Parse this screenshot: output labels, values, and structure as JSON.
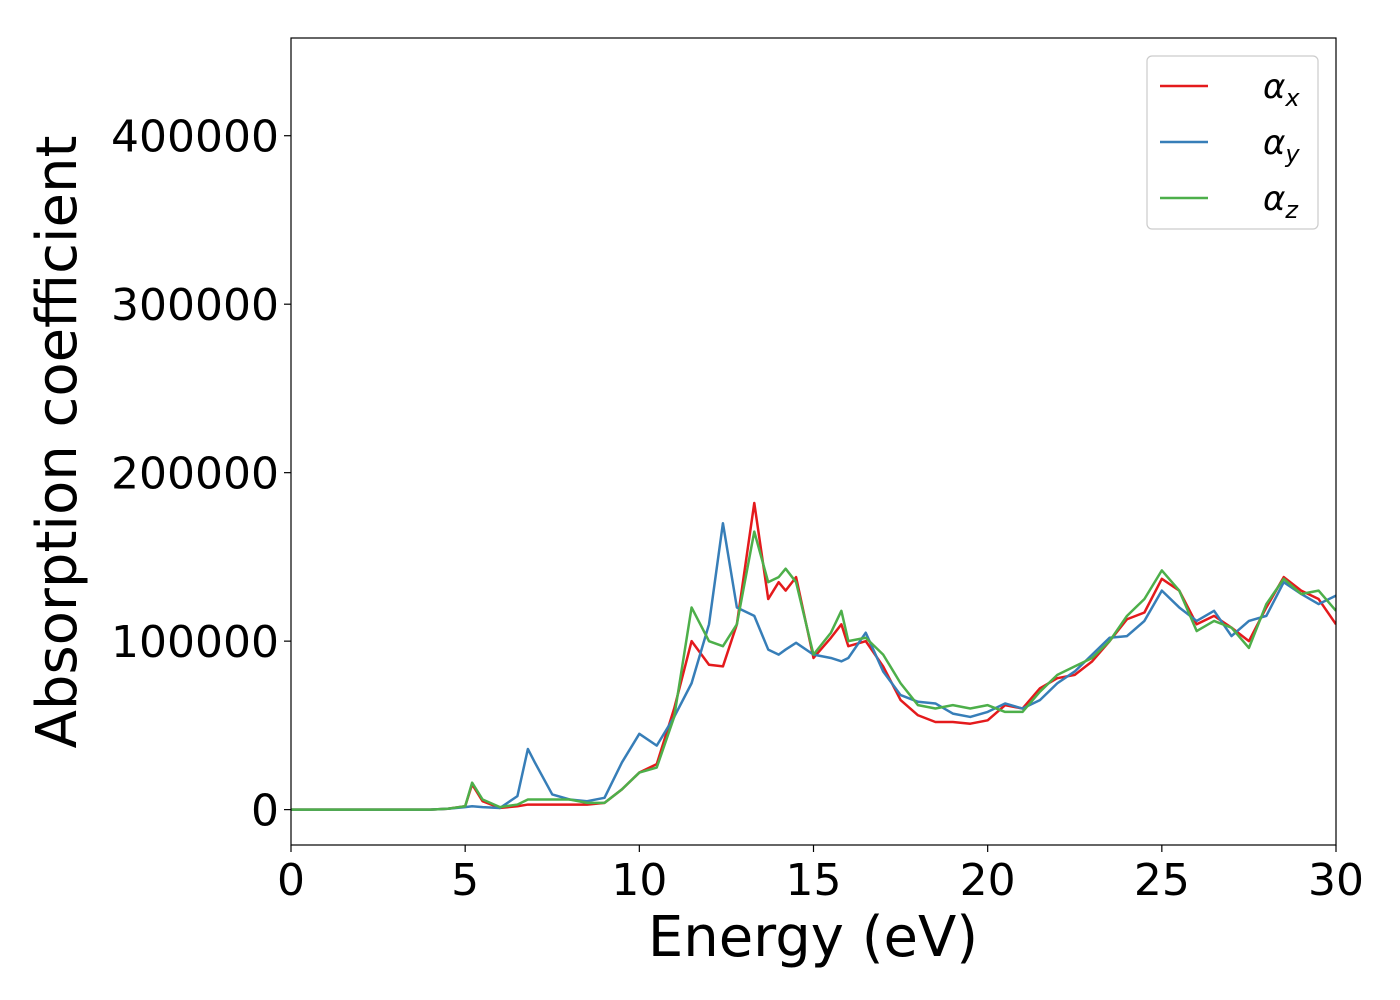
{
  "chart_data": {
    "type": "line",
    "xlabel": "Energy (eV)",
    "ylabel": "Absorption coefficient",
    "x": [
      0,
      1,
      2,
      3,
      4,
      4.5,
      5,
      5.2,
      5.5,
      6,
      6.5,
      6.8,
      7,
      7.5,
      8,
      8.5,
      9,
      9.5,
      10,
      10.5,
      11,
      11.5,
      12,
      12.4,
      12.8,
      13.3,
      13.7,
      14,
      14.2,
      14.5,
      15,
      15.5,
      15.8,
      16,
      16.5,
      17,
      17.5,
      18,
      18.5,
      19,
      19.5,
      20,
      20.5,
      21,
      21.5,
      22,
      22.5,
      23,
      23.5,
      24,
      24.5,
      25,
      25.5,
      26,
      26.5,
      27,
      27.5,
      28,
      28.5,
      29,
      29.5,
      30
    ],
    "series": [
      {
        "name": "αx",
        "color": "#e41a1c",
        "values": [
          0,
          0,
          0,
          0,
          0,
          500,
          2000,
          15000,
          5000,
          1000,
          2000,
          3000,
          3000,
          3000,
          3000,
          3000,
          4000,
          12000,
          22000,
          27000,
          60000,
          100000,
          86000,
          85000,
          110000,
          182000,
          125000,
          135000,
          130000,
          138000,
          90000,
          102000,
          110000,
          97000,
          100000,
          85000,
          65000,
          56000,
          52000,
          52000,
          51000,
          53000,
          62000,
          60000,
          72000,
          78000,
          80000,
          88000,
          100000,
          113000,
          117000,
          137000,
          130000,
          110000,
          115000,
          108000,
          100000,
          120000,
          138000,
          130000,
          125000,
          110000
        ]
      },
      {
        "name": "αy",
        "color": "#377eb8",
        "values": [
          0,
          0,
          0,
          0,
          0,
          500,
          1500,
          2000,
          1500,
          1000,
          8000,
          36000,
          28000,
          9000,
          6000,
          5000,
          7000,
          28000,
          45000,
          38000,
          55000,
          75000,
          110000,
          170000,
          120000,
          115000,
          95000,
          92000,
          95000,
          99000,
          92000,
          90000,
          88000,
          90000,
          105000,
          82000,
          68000,
          64000,
          63000,
          57000,
          55000,
          58000,
          63000,
          60000,
          65000,
          75000,
          82000,
          92000,
          102000,
          103000,
          112000,
          130000,
          120000,
          112000,
          118000,
          103000,
          112000,
          115000,
          135000,
          128000,
          122000,
          127000
        ]
      },
      {
        "name": "αz",
        "color": "#4daf4a",
        "values": [
          0,
          0,
          0,
          0,
          0,
          500,
          2000,
          16000,
          6000,
          1500,
          3000,
          6000,
          6000,
          6000,
          6000,
          4000,
          4000,
          12000,
          22000,
          25000,
          55000,
          120000,
          100000,
          97000,
          110000,
          165000,
          135000,
          138000,
          143000,
          135000,
          92000,
          105000,
          118000,
          100000,
          102000,
          92000,
          75000,
          62000,
          60000,
          62000,
          60000,
          62000,
          58000,
          58000,
          70000,
          80000,
          85000,
          90000,
          100000,
          115000,
          125000,
          142000,
          130000,
          106000,
          112000,
          108000,
          96000,
          122000,
          137000,
          128000,
          130000,
          118000
        ]
      }
    ],
    "xlim": [
      0,
      30
    ],
    "xticks": [
      0,
      5,
      10,
      15,
      20,
      25,
      30
    ],
    "ylim": [
      -21000,
      458000
    ],
    "yticks": [
      0,
      100000,
      200000,
      300000,
      400000
    ],
    "legend": "upper right"
  }
}
